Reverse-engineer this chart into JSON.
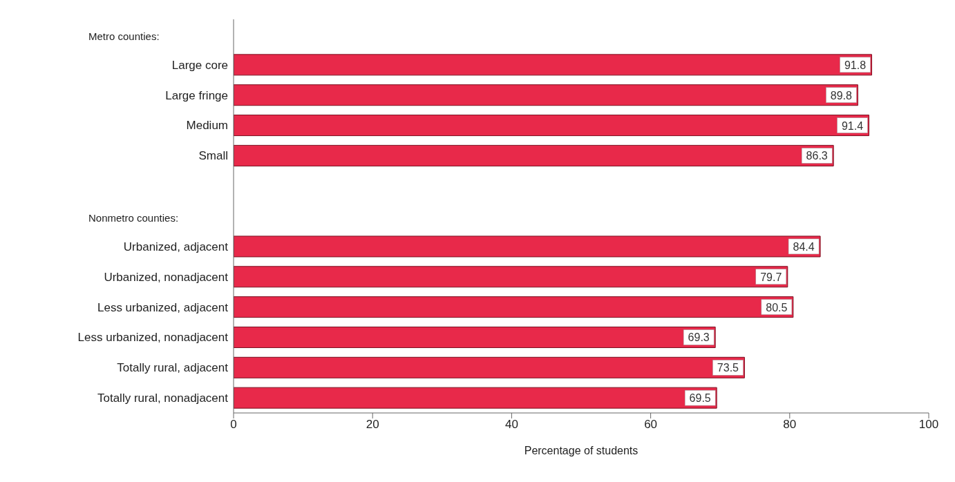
{
  "chart_data": {
    "type": "bar",
    "orientation": "horizontal",
    "xlabel": "Percentage of students",
    "annotations": [
      "Metro counties:",
      "Nonmetro counties:"
    ],
    "categories": [
      null,
      "Large core",
      "Large fringe",
      "Medium",
      "Small",
      null,
      null,
      "Urbanized, adjacent",
      "Urbanized, nonadjacent",
      "Less urbanized, adjacent",
      "Less urbanized, nonadjacent",
      "Totally rural, adjacent",
      "Totally rural, nonadjacent"
    ],
    "values": [
      null,
      91.8,
      89.8,
      91.4,
      86.3,
      null,
      null,
      84.4,
      79.7,
      80.5,
      69.3,
      73.5,
      69.5
    ],
    "color": "#e8294a",
    "xlim": [
      0,
      100
    ],
    "xticks": [
      0,
      20,
      40,
      60,
      80,
      100
    ],
    "grid": false,
    "legend": false,
    "data_labels": true
  }
}
